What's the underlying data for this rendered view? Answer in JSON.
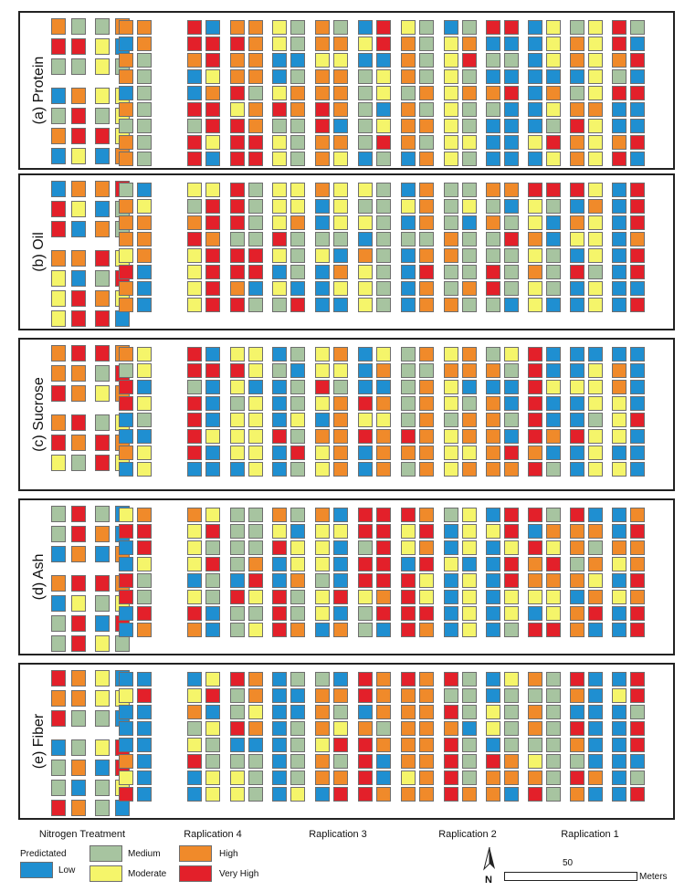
{
  "panels": [
    {
      "label": "(a) Protein",
      "seed": 11
    },
    {
      "label": "(b) Oil",
      "seed": 23
    },
    {
      "label": "(c) Sucrose",
      "seed": 37
    },
    {
      "label": "(d) Ash",
      "seed": 51
    },
    {
      "label": "(e) Fiber",
      "seed": 67
    }
  ],
  "columns": {
    "labels": [
      "Nitrogen Treatment",
      "Raplication 4",
      "Raplication 3",
      "Raplication 2",
      "Raplication 1"
    ]
  },
  "legend": {
    "title": "Predictated",
    "classes": [
      {
        "label": "Low",
        "color": "#1f8fd1"
      },
      {
        "label": "Medium",
        "color": "#a7c4a0"
      },
      {
        "label": "Moderate",
        "color": "#f5f56a"
      },
      {
        "label": "High",
        "color": "#f08a2a"
      },
      {
        "label": "Very High",
        "color": "#e3202a"
      }
    ]
  },
  "north_arrow": {
    "letter": "N"
  },
  "scale_bar": {
    "value": "50",
    "unit": "Meters"
  }
}
